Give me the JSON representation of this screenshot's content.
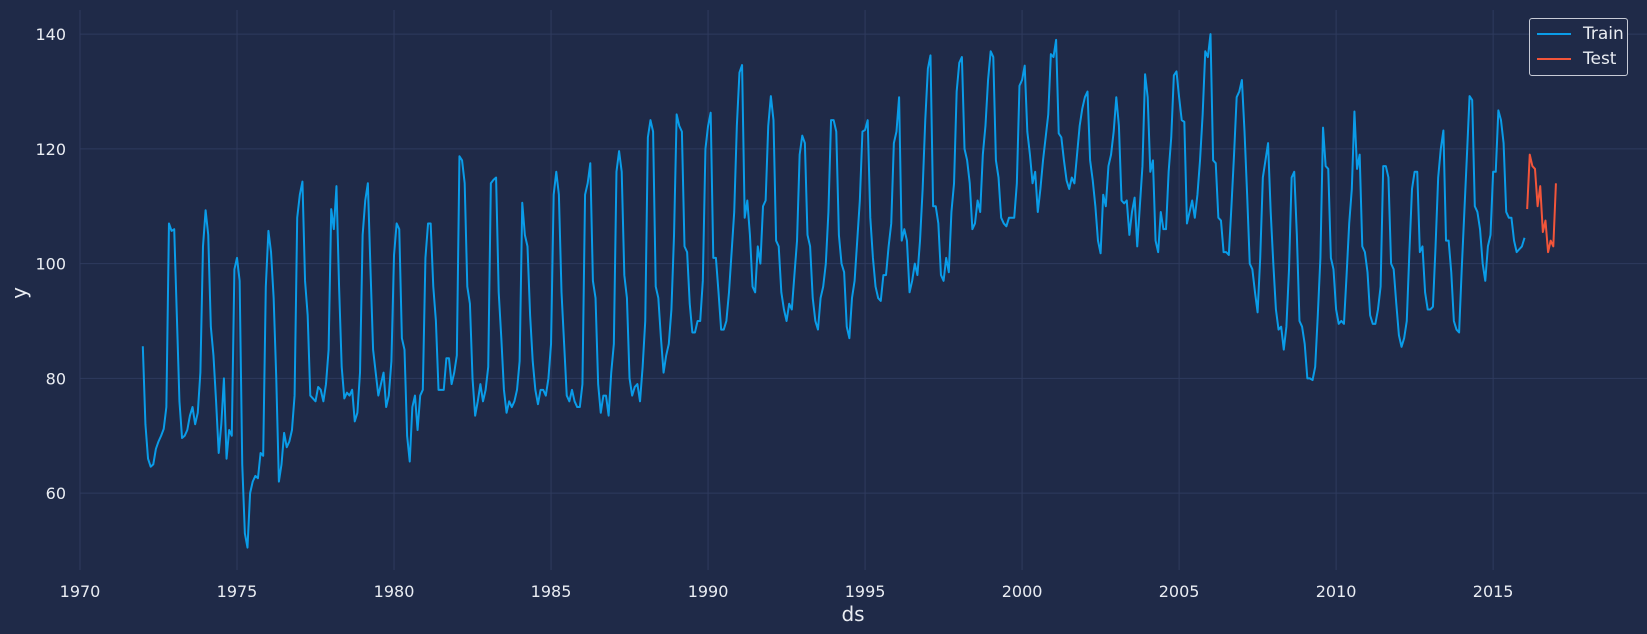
{
  "chart_data": {
    "type": "line",
    "xlabel": "ds",
    "ylabel": "y",
    "xlim": [
      1970,
      2019.9
    ],
    "ylim": [
      46.6,
      144.2
    ],
    "x_ticks": [
      1970,
      1975,
      1980,
      1985,
      1990,
      1995,
      2000,
      2005,
      2010,
      2015
    ],
    "y_ticks": [
      60,
      80,
      100,
      120,
      140
    ],
    "grid": true,
    "legend_position": "top-right",
    "x_start": 1972.0,
    "x_step": 0.0833333,
    "series": [
      {
        "name": "Train",
        "color": "#0a9ce8",
        "values": [
          85.6,
          72,
          66,
          64.6,
          65,
          67.7,
          69,
          70,
          71.2,
          75,
          107,
          105.7,
          106,
          91,
          76,
          69.6,
          70,
          71,
          73.5,
          75,
          72,
          74,
          81,
          103,
          109.3,
          105,
          89,
          84,
          76,
          67,
          72,
          80,
          66,
          71,
          70,
          99,
          101,
          97,
          65,
          53,
          50.5,
          60,
          62,
          63,
          62.6,
          67,
          66.5,
          96,
          105.7,
          102,
          94,
          80,
          62,
          65,
          70.5,
          68,
          69,
          71,
          77,
          108,
          112,
          114.3,
          97,
          91,
          77,
          76.5,
          76,
          78.5,
          78,
          76,
          79,
          85,
          109.5,
          106,
          113.5,
          96,
          82,
          76.5,
          77.5,
          77,
          78,
          72.5,
          74,
          81,
          105,
          111,
          114,
          99,
          85,
          81,
          77,
          79,
          81,
          75,
          77,
          83,
          101.5,
          107,
          106,
          87,
          85,
          70,
          65.5,
          75,
          77,
          71,
          77,
          78,
          101,
          107,
          107,
          96,
          90,
          78,
          78,
          78,
          83.5,
          83.5,
          79,
          81,
          84,
          118.7,
          118,
          114,
          96,
          93,
          80,
          73.5,
          76,
          79,
          76,
          78,
          82,
          114,
          114.6,
          115,
          95,
          87,
          78,
          74,
          76,
          75,
          76,
          78,
          83,
          110.6,
          105,
          103,
          91,
          83,
          78,
          75.5,
          78,
          78,
          77,
          80,
          86,
          112,
          116,
          112,
          95,
          86,
          77,
          76,
          78,
          76,
          75,
          75,
          79,
          112,
          114,
          117.5,
          97,
          94,
          79,
          74,
          77,
          77,
          73.5,
          81,
          86,
          116,
          119.6,
          116,
          98,
          94,
          80,
          77,
          78.5,
          79,
          76,
          82,
          90,
          122,
          125,
          123,
          96,
          94,
          87,
          81,
          84,
          86,
          92,
          105,
          126,
          124,
          123,
          103,
          102,
          93,
          88,
          88,
          90,
          90,
          97,
          120,
          124,
          126.3,
          101,
          101,
          95,
          88.5,
          88.5,
          90,
          95,
          102,
          109,
          124,
          133.3,
          134.6,
          108,
          111,
          105,
          96,
          95,
          103,
          100,
          110,
          111,
          124,
          129.2,
          125,
          104,
          103,
          95,
          92,
          90,
          93,
          92,
          98,
          104,
          119,
          122.3,
          121,
          105,
          103,
          94,
          90,
          88.5,
          94,
          96,
          100,
          109,
          125,
          125,
          123,
          105,
          100,
          98.5,
          89,
          87,
          94,
          97,
          104,
          111,
          123,
          123.3,
          125,
          108,
          101,
          96,
          94,
          93.5,
          98,
          98,
          103,
          107,
          121,
          123,
          129,
          104,
          106,
          104,
          95,
          97,
          100,
          98,
          104,
          113,
          125,
          134,
          136.3,
          110,
          110,
          107,
          98,
          97,
          101,
          98.5,
          109,
          114,
          130,
          135,
          136,
          120,
          118,
          114,
          106,
          107,
          111,
          109,
          119,
          124,
          132,
          137,
          136,
          118,
          115,
          108,
          107,
          106.5,
          108,
          108,
          108,
          114,
          131,
          132,
          134.5,
          123,
          119,
          114,
          116,
          109,
          113,
          118,
          122,
          126,
          136.5,
          136,
          139,
          122.7,
          122,
          118,
          114.5,
          113,
          115,
          114,
          119,
          124,
          127,
          129,
          130,
          118,
          114.5,
          110,
          104,
          101.8,
          112,
          110,
          117,
          119,
          123,
          129,
          124,
          111,
          110.5,
          111,
          105,
          109,
          111.5,
          103,
          110,
          117,
          133,
          129,
          116,
          118,
          104,
          102,
          109,
          106,
          106,
          116,
          122,
          132.8,
          133.5,
          129,
          125,
          124.7,
          107,
          109,
          111,
          108,
          112,
          118,
          126,
          137,
          136,
          140,
          118,
          117.5,
          108,
          107.5,
          102,
          102,
          101.5,
          110,
          119,
          129,
          130,
          132,
          123,
          112,
          100,
          99,
          95,
          91.5,
          101,
          115,
          118,
          121,
          109,
          100,
          92,
          88.5,
          89,
          85,
          89,
          99,
          115,
          116,
          105,
          90,
          89,
          86,
          80,
          80,
          79.7,
          82,
          91,
          101,
          123.7,
          117,
          116.5,
          101,
          99,
          92,
          89.5,
          90,
          89.5,
          98,
          107,
          113,
          126.5,
          116.5,
          119,
          103,
          102,
          98.5,
          91,
          89.5,
          89.5,
          92,
          96,
          117,
          117,
          115,
          100,
          99,
          93,
          87.5,
          85.5,
          87,
          90,
          102,
          113,
          116,
          116,
          102,
          103,
          95,
          92,
          92,
          92.5,
          103,
          115,
          120,
          123.2,
          104,
          104,
          98.5,
          90,
          88.5,
          88,
          99,
          109,
          119,
          129.2,
          128.5,
          110,
          109,
          106,
          100,
          97,
          103,
          105,
          116,
          116,
          126.7,
          125,
          121,
          109,
          108,
          108,
          104,
          102,
          102.5,
          103,
          104.5
        ]
      },
      {
        "name": "Test",
        "color": "#f2553a",
        "values": [
          109.5,
          119,
          117,
          116.5,
          110,
          113.5,
          105.5,
          107.5,
          102,
          104,
          103,
          114
        ]
      }
    ]
  }
}
